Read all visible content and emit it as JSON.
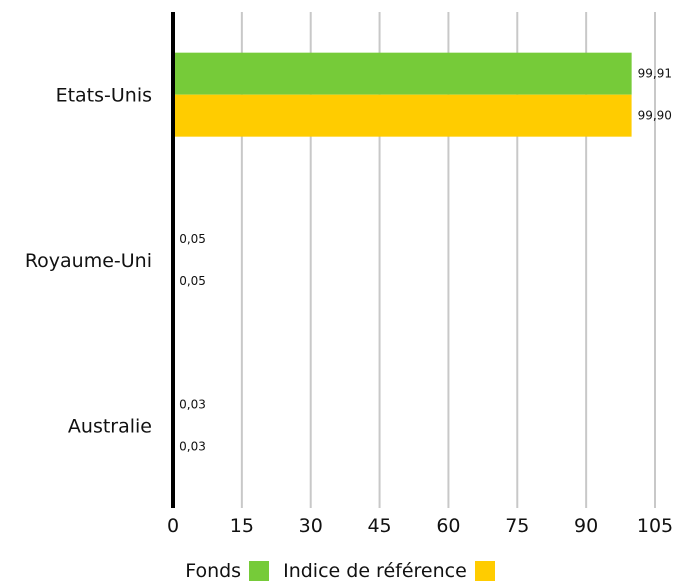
{
  "chart_data": {
    "type": "bar",
    "orientation": "horizontal",
    "categories": [
      "Etats-Unis",
      "Royaume-Uni",
      "Australie"
    ],
    "series": [
      {
        "name": "Fonds",
        "color": "#76CB39",
        "values": [
          99.91,
          0.05,
          0.03
        ],
        "labels": [
          "99,91",
          "0,05",
          "0,03"
        ]
      },
      {
        "name": "Indice de référence",
        "color": "#FFCC00",
        "values": [
          99.9,
          0.05,
          0.03
        ],
        "labels": [
          "99,90",
          "0,05",
          "0,03"
        ]
      }
    ],
    "xlim": [
      0,
      105
    ],
    "xticks": [
      0,
      15,
      30,
      45,
      60,
      75,
      90,
      105
    ],
    "grid": true,
    "legend_position": "bottom-center"
  }
}
